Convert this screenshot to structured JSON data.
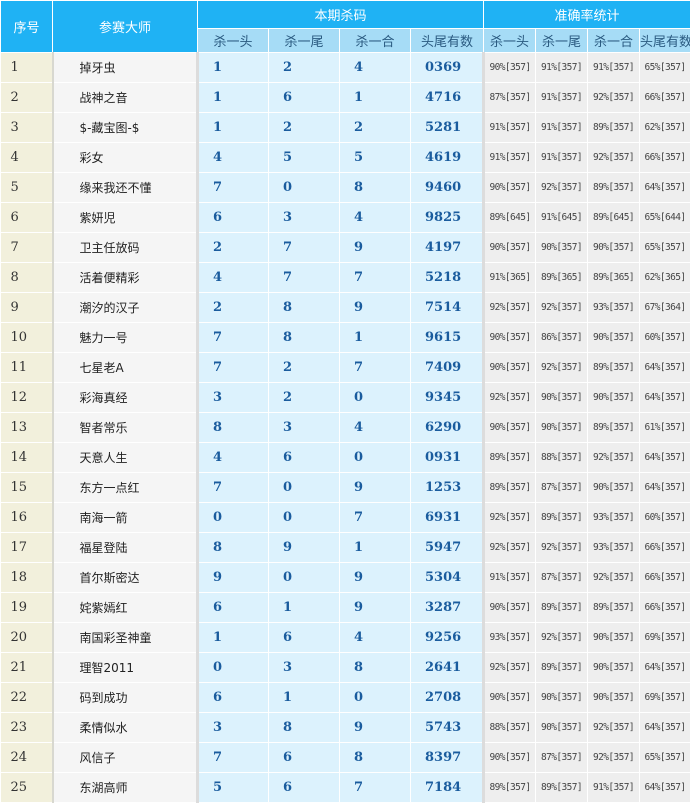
{
  "header": {
    "index": "序号",
    "master": "参赛大师",
    "kill_group": "本期杀码",
    "stats_group": "准确率统计",
    "kill_cols": [
      "杀一头",
      "杀一尾",
      "杀一合",
      "头尾有数"
    ],
    "stats_cols": [
      "杀一头",
      "杀一尾",
      "杀一合",
      "头尾有数"
    ]
  },
  "rows": [
    {
      "no": "1",
      "name": "掉牙虫",
      "kill": [
        "1",
        "2",
        "4",
        "0369"
      ],
      "stats": [
        "90%[357]",
        "91%[357]",
        "91%[357]",
        "65%[357]"
      ]
    },
    {
      "no": "2",
      "name": "战神之音",
      "kill": [
        "1",
        "6",
        "1",
        "4716"
      ],
      "stats": [
        "87%[357]",
        "91%[357]",
        "92%[357]",
        "66%[357]"
      ]
    },
    {
      "no": "3",
      "name": "$-藏宝图-$",
      "kill": [
        "1",
        "2",
        "2",
        "5281"
      ],
      "stats": [
        "91%[357]",
        "91%[357]",
        "89%[357]",
        "62%[357]"
      ]
    },
    {
      "no": "4",
      "name": "彩女",
      "kill": [
        "4",
        "5",
        "5",
        "4619"
      ],
      "stats": [
        "91%[357]",
        "91%[357]",
        "92%[357]",
        "66%[357]"
      ]
    },
    {
      "no": "5",
      "name": "缘来我还不懂",
      "kill": [
        "7",
        "0",
        "8",
        "9460"
      ],
      "stats": [
        "90%[357]",
        "92%[357]",
        "89%[357]",
        "64%[357]"
      ]
    },
    {
      "no": "6",
      "name": "紫妍児",
      "kill": [
        "6",
        "3",
        "4",
        "9825"
      ],
      "stats": [
        "89%[645]",
        "91%[645]",
        "89%[645]",
        "65%[644]"
      ]
    },
    {
      "no": "7",
      "name": "卫主任放码",
      "kill": [
        "2",
        "7",
        "9",
        "4197"
      ],
      "stats": [
        "90%[357]",
        "90%[357]",
        "90%[357]",
        "65%[357]"
      ]
    },
    {
      "no": "8",
      "name": "活着便精彩",
      "kill": [
        "4",
        "7",
        "7",
        "5218"
      ],
      "stats": [
        "91%[365]",
        "89%[365]",
        "89%[365]",
        "62%[365]"
      ]
    },
    {
      "no": "9",
      "name": "潮汐的汉子",
      "kill": [
        "2",
        "8",
        "9",
        "7514"
      ],
      "stats": [
        "92%[357]",
        "92%[357]",
        "93%[357]",
        "67%[364]"
      ]
    },
    {
      "no": "10",
      "name": "魅力一号",
      "kill": [
        "7",
        "8",
        "1",
        "9615"
      ],
      "stats": [
        "90%[357]",
        "86%[357]",
        "90%[357]",
        "60%[357]"
      ]
    },
    {
      "no": "11",
      "name": "七星老A",
      "kill": [
        "7",
        "2",
        "7",
        "7409"
      ],
      "stats": [
        "90%[357]",
        "92%[357]",
        "89%[357]",
        "64%[357]"
      ]
    },
    {
      "no": "12",
      "name": "彩海真经",
      "kill": [
        "3",
        "2",
        "0",
        "9345"
      ],
      "stats": [
        "92%[357]",
        "90%[357]",
        "90%[357]",
        "64%[357]"
      ]
    },
    {
      "no": "13",
      "name": "智者常乐",
      "kill": [
        "8",
        "3",
        "4",
        "6290"
      ],
      "stats": [
        "90%[357]",
        "90%[357]",
        "89%[357]",
        "61%[357]"
      ]
    },
    {
      "no": "14",
      "name": "天意人生",
      "kill": [
        "4",
        "6",
        "0",
        "0931"
      ],
      "stats": [
        "89%[357]",
        "88%[357]",
        "92%[357]",
        "64%[357]"
      ]
    },
    {
      "no": "15",
      "name": "东方一点红",
      "kill": [
        "7",
        "0",
        "9",
        "1253"
      ],
      "stats": [
        "89%[357]",
        "87%[357]",
        "90%[357]",
        "64%[357]"
      ]
    },
    {
      "no": "16",
      "name": "南海一箭",
      "kill": [
        "0",
        "0",
        "7",
        "6931"
      ],
      "stats": [
        "92%[357]",
        "89%[357]",
        "93%[357]",
        "60%[357]"
      ]
    },
    {
      "no": "17",
      "name": "福星登陆",
      "kill": [
        "8",
        "9",
        "1",
        "5947"
      ],
      "stats": [
        "92%[357]",
        "92%[357]",
        "93%[357]",
        "66%[357]"
      ]
    },
    {
      "no": "18",
      "name": "首尔斯密达",
      "kill": [
        "9",
        "0",
        "9",
        "5304"
      ],
      "stats": [
        "91%[357]",
        "87%[357]",
        "92%[357]",
        "66%[357]"
      ]
    },
    {
      "no": "19",
      "name": "姹紫嫣红",
      "kill": [
        "6",
        "1",
        "9",
        "3287"
      ],
      "stats": [
        "90%[357]",
        "89%[357]",
        "89%[357]",
        "66%[357]"
      ]
    },
    {
      "no": "20",
      "name": "南国彩圣神童",
      "kill": [
        "1",
        "6",
        "4",
        "9256"
      ],
      "stats": [
        "93%[357]",
        "92%[357]",
        "90%[357]",
        "69%[357]"
      ]
    },
    {
      "no": "21",
      "name": "理智2011",
      "kill": [
        "0",
        "3",
        "8",
        "2641"
      ],
      "stats": [
        "92%[357]",
        "89%[357]",
        "90%[357]",
        "64%[357]"
      ]
    },
    {
      "no": "22",
      "name": "码到成功",
      "kill": [
        "6",
        "1",
        "0",
        "2708"
      ],
      "stats": [
        "90%[357]",
        "90%[357]",
        "90%[357]",
        "69%[357]"
      ]
    },
    {
      "no": "23",
      "name": "柔情似水",
      "kill": [
        "3",
        "8",
        "9",
        "5743"
      ],
      "stats": [
        "88%[357]",
        "90%[357]",
        "92%[357]",
        "64%[357]"
      ]
    },
    {
      "no": "24",
      "name": "风信子",
      "kill": [
        "7",
        "6",
        "8",
        "8397"
      ],
      "stats": [
        "90%[357]",
        "87%[357]",
        "92%[357]",
        "65%[357]"
      ]
    },
    {
      "no": "25",
      "name": "东湖高师",
      "kill": [
        "5",
        "6",
        "7",
        "7184"
      ],
      "stats": [
        "89%[357]",
        "89%[357]",
        "91%[357]",
        "64%[357]"
      ]
    }
  ]
}
